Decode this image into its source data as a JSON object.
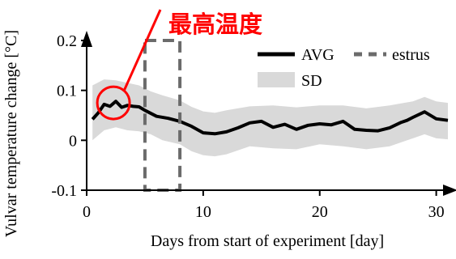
{
  "chart_data": {
    "type": "line",
    "xlabel": "Days from start of experiment [day]",
    "ylabel": "Vulvar temperature change [°C]",
    "xlim": [
      0,
      31
    ],
    "ylim": [
      -0.1,
      0.2
    ],
    "xticks": [
      0,
      10,
      20,
      30
    ],
    "yticks": [
      -0.1,
      0,
      0.1,
      0.2
    ],
    "xtick_labels": [
      "0",
      "10",
      "20",
      "30"
    ],
    "ytick_labels": [
      "-0.1",
      "0",
      "0.1",
      "0.2"
    ],
    "legend_position": "top-right",
    "series": [
      {
        "name": "AVG",
        "color": "#000000",
        "x": [
          0.5,
          1.0,
          1.5,
          2.0,
          2.5,
          3.0,
          3.5,
          4.0,
          4.5,
          5.0,
          6.0,
          7.0,
          8.0,
          9.0,
          10.0,
          11.0,
          12.0,
          13.0,
          14.0,
          15.0,
          16.0,
          17.0,
          18.0,
          19.0,
          20.0,
          21.0,
          22.0,
          23.0,
          24.0,
          25.0,
          26.0,
          27.0,
          27.5,
          28.0,
          29.0,
          30.0,
          31.0
        ],
        "y": [
          0.042,
          0.055,
          0.072,
          0.068,
          0.078,
          0.066,
          0.07,
          0.068,
          0.067,
          0.06,
          0.048,
          0.044,
          0.038,
          0.028,
          0.015,
          0.013,
          0.017,
          0.025,
          0.035,
          0.038,
          0.026,
          0.032,
          0.022,
          0.03,
          0.033,
          0.031,
          0.038,
          0.022,
          0.02,
          0.019,
          0.025,
          0.036,
          0.04,
          0.046,
          0.057,
          0.043,
          0.04
        ]
      }
    ],
    "sd_band": {
      "name": "SD",
      "color": "#d9d9d9",
      "x": [
        0.5,
        1.5,
        2.5,
        3.5,
        4.5,
        5.5,
        6.5,
        8.0,
        9.0,
        10.0,
        11.0,
        12.0,
        14.0,
        16.0,
        18.0,
        20.0,
        22.0,
        24.0,
        26.0,
        28.0,
        29.0,
        30.0,
        31.0
      ],
      "upper": [
        0.11,
        0.122,
        0.12,
        0.115,
        0.11,
        0.098,
        0.09,
        0.08,
        0.067,
        0.058,
        0.055,
        0.06,
        0.068,
        0.07,
        0.066,
        0.07,
        0.07,
        0.064,
        0.07,
        0.078,
        0.087,
        0.078,
        0.075
      ],
      "lower": [
        0.0,
        0.02,
        0.026,
        0.02,
        0.018,
        0.012,
        0.0,
        -0.008,
        -0.022,
        -0.03,
        -0.032,
        -0.028,
        -0.012,
        -0.016,
        -0.018,
        -0.008,
        -0.012,
        -0.018,
        -0.012,
        0.004,
        0.012,
        0.004,
        0.002
      ]
    },
    "estrus_box": {
      "name": "estrus",
      "x_range": [
        5,
        8
      ],
      "y_range": [
        -0.1,
        0.2
      ]
    },
    "legend": [
      {
        "label": "AVG",
        "style": "line"
      },
      {
        "label": "estrus",
        "style": "dashed"
      },
      {
        "label": "SD",
        "style": "band"
      }
    ],
    "annotation": {
      "text": "最高温度",
      "color": "#ff0000",
      "target": {
        "x": 2.3,
        "y": 0.075
      }
    }
  }
}
